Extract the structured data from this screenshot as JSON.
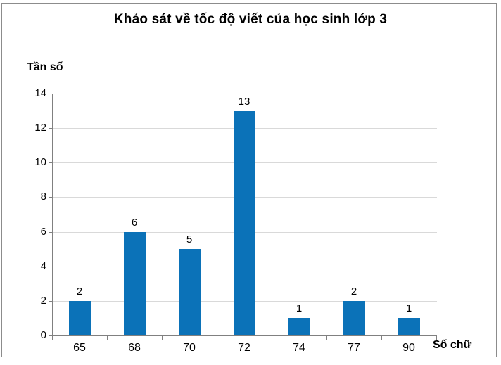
{
  "chart_data": {
    "type": "bar",
    "title": "Khảo sát về tốc độ viết của học sinh lớp 3",
    "ylabel": "Tần số",
    "xlabel": "Số chữ",
    "categories": [
      "65",
      "68",
      "70",
      "72",
      "74",
      "77",
      "90"
    ],
    "values": [
      2,
      6,
      5,
      13,
      1,
      2,
      1
    ],
    "data_labels": [
      "2",
      "6",
      "5",
      "13",
      "1",
      "2",
      "1"
    ],
    "ylim": [
      0,
      14
    ],
    "yticks": [
      0,
      2,
      4,
      6,
      8,
      10,
      12,
      14
    ],
    "grid": "horizontal",
    "legend": "none",
    "colors": {
      "bar": "#0b72b8",
      "gridline": "#d9d9d9",
      "axis": "#808080",
      "frame_border": "#8c8c8c",
      "text": "#000000"
    }
  }
}
